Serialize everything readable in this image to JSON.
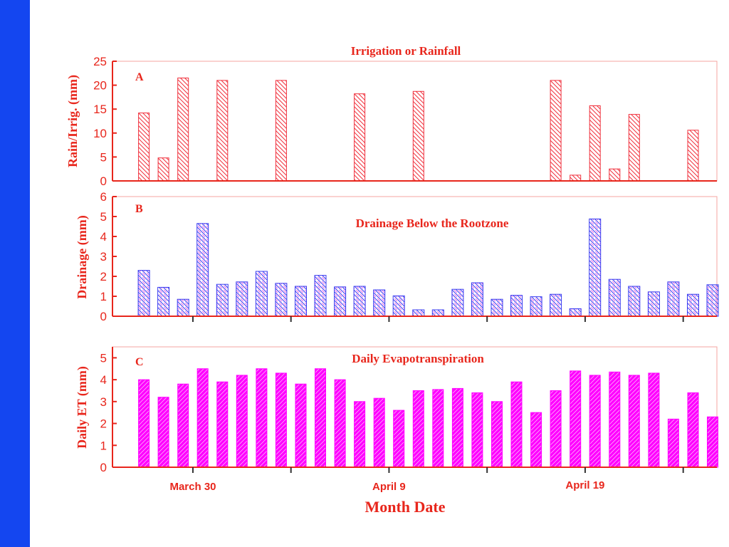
{
  "colors": {
    "sidebar": "#1446f0",
    "label_red": "#e8261c",
    "axis_red": "#e8261c",
    "frame_pink": "#f4a6a0",
    "rain_red": "#f0303c",
    "drain_blue": "#3a3cf0",
    "drain_pink": "#e870e8",
    "et_magenta": "#ff00ff"
  },
  "x_axis": {
    "label": "Month Date",
    "date_labels": [
      "March 30",
      "April 9",
      "April 19"
    ],
    "date_positions": [
      3.5,
      13.5,
      23.5
    ],
    "major_ticks": [
      3.5,
      8.5,
      13.5,
      18.5,
      23.5,
      28.5
    ],
    "xlim": [
      0,
      30
    ]
  },
  "chart_data": [
    {
      "type": "bar",
      "panel": "A",
      "title": "Irrigation or Rainfall",
      "ylabel": "Rain/Irrig. (mm)",
      "ylim": [
        0,
        25
      ],
      "yticks": [
        0,
        5,
        10,
        15,
        20,
        25
      ],
      "hatch": "\\",
      "series": [
        {
          "x": [
            1,
            2,
            3,
            5,
            8,
            12,
            15,
            22,
            23,
            24,
            25,
            26,
            29
          ],
          "values": [
            14.2,
            4.8,
            21.5,
            21,
            21,
            18.2,
            18.7,
            21,
            1.2,
            15.7,
            2.5,
            13.9,
            10.6
          ]
        }
      ]
    },
    {
      "type": "bar",
      "panel": "B",
      "title": "Drainage Below the Rootzone",
      "ylabel": "Drainage (mm)",
      "ylim": [
        0,
        6
      ],
      "yticks": [
        0,
        1,
        2,
        3,
        4,
        5,
        6
      ],
      "hatch": "\\",
      "series": [
        {
          "x": [
            1,
            2,
            3,
            4,
            5,
            6,
            7,
            8,
            9,
            10,
            11,
            12,
            13,
            14,
            15,
            16,
            17,
            18,
            19,
            20,
            21,
            22,
            23,
            24,
            25,
            26,
            27,
            28,
            29,
            30
          ],
          "values": [
            2.3,
            1.45,
            0.85,
            4.65,
            1.6,
            1.72,
            2.25,
            1.65,
            1.5,
            2.05,
            1.47,
            1.5,
            1.32,
            1.02,
            0.32,
            0.32,
            1.35,
            1.68,
            0.85,
            1.05,
            0.98,
            1.1,
            0.38,
            4.88,
            1.85,
            1.5,
            1.22,
            1.72,
            1.1,
            1.58
          ]
        }
      ]
    },
    {
      "type": "bar",
      "panel": "C",
      "title": "Daily Evapotranspiration",
      "ylabel": "Daily ET (mm)",
      "ylim": [
        0,
        5.5
      ],
      "yticks": [
        0,
        1,
        2,
        3,
        4,
        5
      ],
      "hatch": "/",
      "series": [
        {
          "x": [
            1,
            2,
            3,
            4,
            5,
            6,
            7,
            8,
            9,
            10,
            11,
            12,
            13,
            14,
            15,
            16,
            17,
            18,
            19,
            20,
            21,
            22,
            23,
            24,
            25,
            26,
            27,
            28,
            29,
            30
          ],
          "values": [
            4.0,
            3.2,
            3.8,
            4.5,
            3.9,
            4.2,
            4.5,
            4.3,
            3.8,
            4.5,
            4.0,
            3.0,
            3.15,
            2.6,
            3.5,
            3.55,
            3.6,
            3.4,
            3.0,
            3.9,
            2.5,
            3.5,
            4.4,
            4.2,
            4.35,
            4.2,
            4.3,
            2.2,
            3.4,
            2.3
          ]
        }
      ]
    }
  ]
}
